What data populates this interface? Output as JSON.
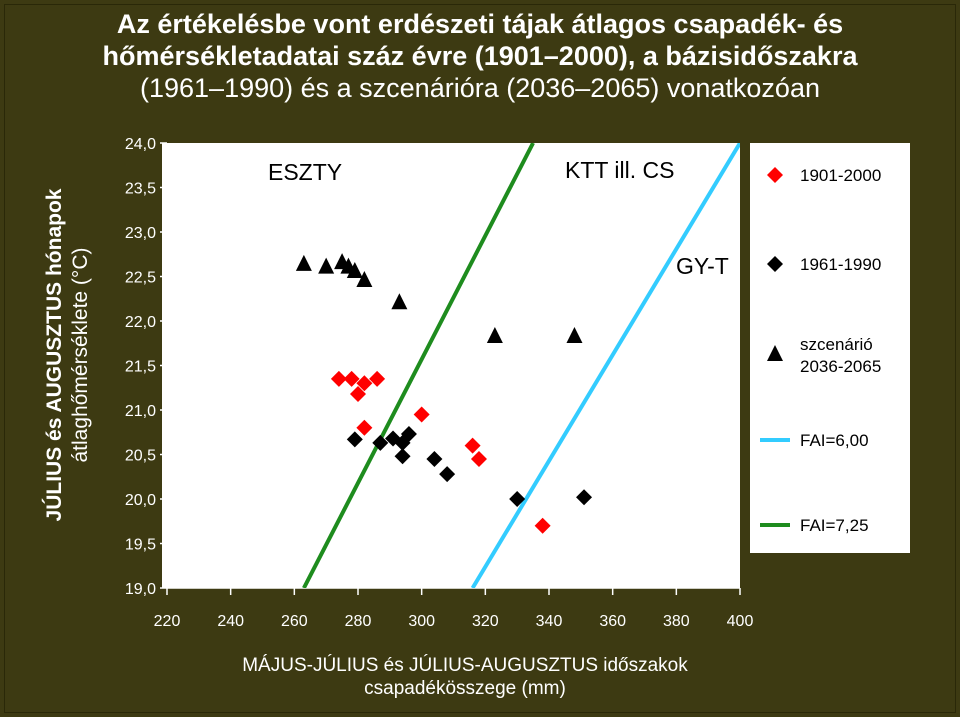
{
  "title": {
    "line1": "Az értékelésbe vont erdészeti tájak átlagos csapadék- és",
    "line2": "hőmérsékletadatai száz évre (1901–2000), a bázisidőszakra",
    "line3": "(1961–1990) és a szcenárióra (2036–2065) vonatkozóan"
  },
  "ylabel": {
    "line1": "JÚLIUS és AUGUSZTUS hónapok",
    "line2": "átlaghőmérséklete (°C)"
  },
  "xlabel": {
    "line1": "MÁJUS-JÚLIUS és JÚLIUS-AUGUSZTUS időszakok",
    "line2": "csapadékösszege (mm)"
  },
  "chart_data": {
    "type": "scatter",
    "xlim": [
      220,
      400
    ],
    "ylim": [
      19.0,
      24.0
    ],
    "x_ticks": [
      "220",
      "240",
      "260",
      "280",
      "300",
      "320",
      "340",
      "360",
      "380",
      "400"
    ],
    "y_ticks": [
      "19,0",
      "19,5",
      "20,0",
      "20,5",
      "21,0",
      "21,5",
      "22,0",
      "22,5",
      "23,0",
      "23,5",
      "24,0"
    ],
    "grid": false,
    "legend_position": "right",
    "annotations": [
      "ESZTY",
      "KTT ill. CS",
      "GY-T"
    ],
    "series": [
      {
        "name": "1901-2000",
        "marker": "diamond",
        "color": "#ff0000",
        "points": [
          [
            274,
            21.35
          ],
          [
            278,
            21.35
          ],
          [
            282,
            21.3
          ],
          [
            286,
            21.35
          ],
          [
            280,
            21.18
          ],
          [
            282,
            20.8
          ],
          [
            300,
            20.95
          ],
          [
            316,
            20.6
          ],
          [
            318,
            20.45
          ],
          [
            338,
            19.7
          ]
        ]
      },
      {
        "name": "1961-1990",
        "marker": "diamond",
        "color": "#000000",
        "points": [
          [
            279,
            20.67
          ],
          [
            287,
            20.63
          ],
          [
            291,
            20.68
          ],
          [
            294,
            20.63
          ],
          [
            296,
            20.73
          ],
          [
            294,
            20.48
          ],
          [
            304,
            20.45
          ],
          [
            308,
            20.28
          ],
          [
            330,
            20.0
          ],
          [
            351,
            20.02
          ]
        ]
      },
      {
        "name": "szcenárió 2036-2065",
        "marker": "triangle",
        "color": "#000000",
        "points": [
          [
            263,
            22.63
          ],
          [
            270,
            22.6
          ],
          [
            275,
            22.65
          ],
          [
            277,
            22.6
          ],
          [
            279,
            22.55
          ],
          [
            282,
            22.45
          ],
          [
            293,
            22.2
          ],
          [
            323,
            21.82
          ],
          [
            348,
            21.82
          ]
        ]
      },
      {
        "name": "FAI=6,00",
        "type": "line",
        "color": "#33ccff",
        "points": [
          [
            316,
            19.0
          ],
          [
            400,
            24.0
          ]
        ]
      },
      {
        "name": "FAI=7,25",
        "type": "line",
        "color": "#1e8c1e",
        "points": [
          [
            263,
            19.0
          ],
          [
            335,
            24.0
          ]
        ]
      }
    ]
  }
}
